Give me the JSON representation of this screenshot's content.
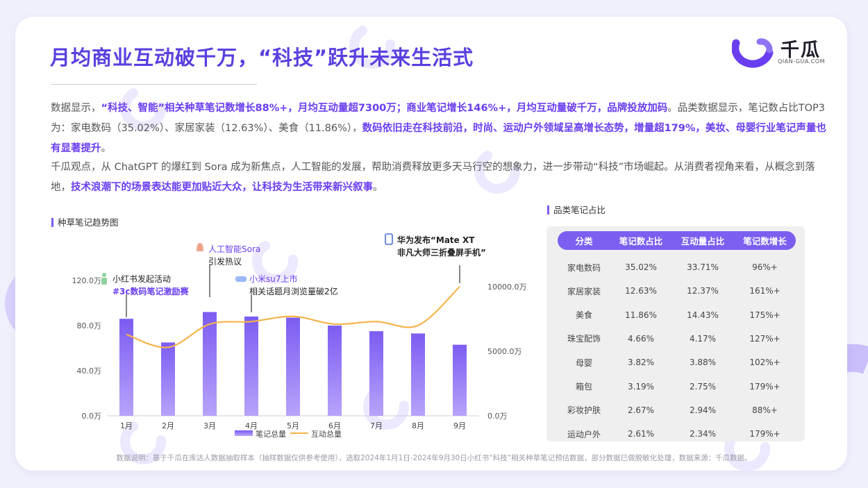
{
  "title": "月均商业互动破千万，“科技”跃升未来生活式",
  "logo": {
    "name": "千瓜",
    "domain": "QIAN-GUA.COM"
  },
  "paragraph1": {
    "s1": "数据显示，",
    "s2": "“科技、智能”相关种草笔记数增长88%+，月均互动量超7300万；商业笔记增长146%+，月均互动量破千万，品牌投放加码",
    "s3": "。品类数据显示，笔记数占比TOP3为：家电数码（35.02%）、家居家装（12.63%）、美食（11.86%），",
    "s4": "数码依旧走在科技前沿，时尚、运动户外领域呈高增长态势，增量超179%，美妆、母婴行业笔记声量也有显著提升",
    "s5": "。"
  },
  "paragraph2": {
    "s1": "千瓜观点，从 ChatGPT 的爆红到 Sora 成为新焦点，人工智能的发展，帮助消费释放更多天马行空的想象力，进一步带动“科技”市场崛起。从消费者视角来看，从概念到落地，",
    "s2": "技术浪潮下的场景表达能更加贴近大众，让科技为生活带来新兴叙事",
    "s3": "。"
  },
  "trend_title": "种草笔记趋势图",
  "table_title": "品类笔记占比",
  "chart_data": {
    "type": "bar",
    "categories": [
      "1月",
      "2月",
      "3月",
      "4月",
      "5月",
      "6月",
      "7月",
      "8月",
      "9月"
    ],
    "series": [
      {
        "name": "笔记总量",
        "type": "bar",
        "axis": "left",
        "values": [
          86,
          65,
          92,
          88,
          87,
          80,
          75,
          73,
          63
        ]
      },
      {
        "name": "互动总量",
        "type": "line",
        "axis": "right",
        "values": [
          6300,
          5300,
          7100,
          7300,
          7700,
          7100,
          7300,
          7000,
          10000
        ]
      }
    ],
    "y_left": {
      "ticks": [
        "0.0万",
        "40.0万",
        "80.0万",
        "120.0万"
      ],
      "range": [
        0,
        120
      ]
    },
    "y_right": {
      "ticks": [
        "0.0万",
        "5000.0万",
        "10000.0万"
      ],
      "range": [
        0,
        10000
      ]
    },
    "legend_position": "bottom",
    "annotations": [
      {
        "month": "1月",
        "line1": "小红书发起活动",
        "line2": "#3c数码笔记激励赛"
      },
      {
        "month": "3月",
        "line1": "人工智能Sora",
        "line2": "引发热议"
      },
      {
        "month": "4月",
        "line1": "小米su7上市",
        "line2": "相关话题月浏览量破2亿"
      },
      {
        "month": "9月",
        "line1": "华为发布“Mate XT",
        "line2": "非凡大师三折叠屏手机”"
      }
    ]
  },
  "colors": {
    "accent": "#6a3ef0",
    "bar": "#7b5cf0",
    "line": "#f5b34a"
  },
  "table": {
    "headers": [
      "分类",
      "笔记数占比",
      "互动量占比",
      "笔记数增长"
    ],
    "rows": [
      [
        "家电数码",
        "35.02%",
        "33.71%",
        "96%+"
      ],
      [
        "家居家装",
        "12.63%",
        "12.37%",
        "161%+"
      ],
      [
        "美食",
        "11.86%",
        "14.43%",
        "175%+"
      ],
      [
        "珠宝配饰",
        "4.66%",
        "4.17%",
        "127%+"
      ],
      [
        "母婴",
        "3.82%",
        "3.88%",
        "102%+"
      ],
      [
        "箱包",
        "3.19%",
        "2.75%",
        "179%+"
      ],
      [
        "彩妆护肤",
        "2.67%",
        "2.94%",
        "88%+"
      ],
      [
        "运动户外",
        "2.61%",
        "2.34%",
        "179%+"
      ]
    ]
  },
  "footnote": "数据说明：基于千瓜在库达人数据抽取样本（抽样数据仅供参考使用），选取2024年1月1日-2024年9月30日小红书“科技”相关种草笔记预估数据，部分数据已做脱敏化处理，数据来源：千瓜数据。",
  "watermark": {
    "text": "千瓜",
    "domain": "QIAN-GUA.COM"
  }
}
